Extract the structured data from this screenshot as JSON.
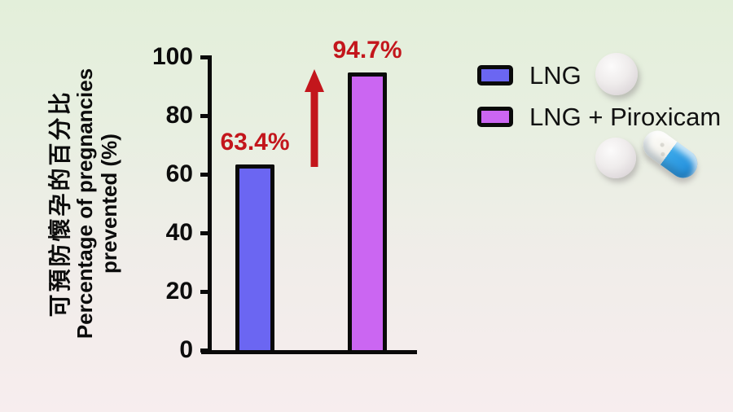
{
  "chart_data": {
    "type": "bar",
    "categories": [
      "LNG",
      "LNG + Piroxicam"
    ],
    "values": [
      63.4,
      94.7
    ],
    "value_labels": [
      "63.4%",
      "94.7%"
    ],
    "bar_colors": [
      "#6b66f2",
      "#cb66f2"
    ],
    "ylabel_zh": "可預防懷孕的百分比",
    "ylabel_en": "Percentage of pregnancies prevented (%)",
    "ylim": [
      0,
      100
    ],
    "yticks": [
      0,
      20,
      40,
      60,
      80,
      100
    ],
    "grid": false,
    "legend_position": "right",
    "legend": [
      {
        "label": "LNG",
        "color": "#6b66f2",
        "icon": "round-pill-icon"
      },
      {
        "label": "LNG + Piroxicam",
        "color": "#cb66f2",
        "icon": "round-pill-and-capsule-icon"
      }
    ],
    "annotations": [
      {
        "type": "arrow-up",
        "meaning": "increase from 63.4% to 94.7%",
        "color": "#c3161c"
      }
    ],
    "accent_red": "#c3161c"
  }
}
